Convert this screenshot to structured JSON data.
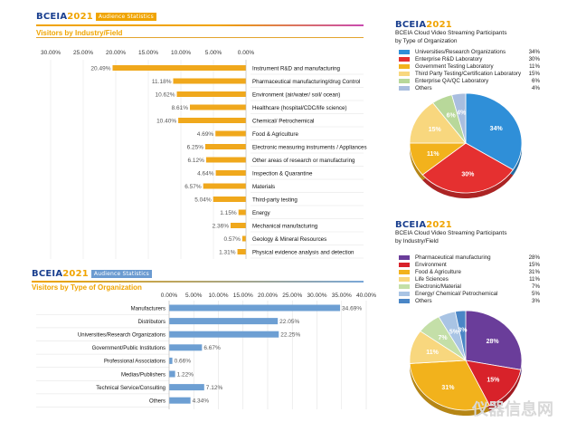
{
  "industry_section": {
    "logo_main": "BCEIA",
    "logo_year": "2021",
    "tag": "Audience Statistics",
    "title": "Visitors by Industry/Field"
  },
  "type_section": {
    "logo_main": "BCEIA",
    "logo_year": "2021",
    "tag": "Audience Statistics",
    "title": "Visitors by Type of Organization"
  },
  "pie_org_section": {
    "logo_main": "BCEIA",
    "logo_year": "2021",
    "title_line1": "BCEIA Cloud Video Streaming Participants",
    "title_line2": "by Type of Organization"
  },
  "pie_field_section": {
    "logo_main": "BCEIA",
    "logo_year": "2021",
    "title_line1": "BCEIA Cloud Video Streaming Participants",
    "title_line2": "by Industry/Field"
  },
  "watermark": "仪器信息网",
  "chart_data": [
    {
      "id": "industry",
      "type": "bar",
      "orientation": "horizontal-reversed",
      "title": "Visitors by Industry/Field",
      "xlim": [
        0,
        30
      ],
      "ticks": [
        "30.00%",
        "25.00%",
        "20.00%",
        "15.00%",
        "10.00%",
        "5.00%",
        "0.00%"
      ],
      "tick_values": [
        30,
        25,
        20,
        15,
        10,
        5,
        0
      ],
      "color": "#f0a81c",
      "categories": [
        "Instrument R&D and manufacturing",
        "Pharmaceutical manufacturing/drug Control",
        "Environment (air/water/ soil/ ocean)",
        "Healthcare (hospital/CDC/life science)",
        "Chemical/ Petrochemical",
        "Food & Agriculture",
        "Electronic measuring instruments / Appliances",
        "Other areas of research or manufacturing",
        "Inspection & Quarantine",
        "Materials",
        "Third-party testing",
        "Energy",
        "Mechanical manufacturing",
        "Geology & Mineral Resources",
        "Physical evidence analysis and detection"
      ],
      "values": [
        20.49,
        11.18,
        10.62,
        8.61,
        10.4,
        4.69,
        6.25,
        6.12,
        4.64,
        6.57,
        5.04,
        1.15,
        2.36,
        0.57,
        1.31
      ],
      "labels": [
        "20.49%",
        "11.18%",
        "10.62%",
        "8.61%",
        "10.40%",
        "4.69%",
        "6.25%",
        "6.12%",
        "4.64%",
        "6.57%",
        "5.04%",
        "1.15%",
        "2.36%",
        "0.57%",
        "1.31%"
      ]
    },
    {
      "id": "org_type",
      "type": "bar",
      "orientation": "horizontal",
      "title": "Visitors by Type of Organization",
      "xlim": [
        0,
        40
      ],
      "ticks": [
        "0.00%",
        "5.00%",
        "10.00%",
        "15.00%",
        "20.00%",
        "25.00%",
        "30.00%",
        "35.00%",
        "40.00%"
      ],
      "tick_values": [
        0,
        5,
        10,
        15,
        20,
        25,
        30,
        35,
        40
      ],
      "color": "#6d9fd3",
      "categories": [
        "Manufacturers",
        "Distributors",
        "Universities/Research Organizations",
        "Government/Public Institutions",
        "Professional Associations",
        "Medias/Publishers",
        "Technical Service/Consulting",
        "Others"
      ],
      "values": [
        34.69,
        22.05,
        22.25,
        6.67,
        0.66,
        1.22,
        7.12,
        4.34
      ],
      "labels": [
        "34.69%",
        "22.05%",
        "22.25%",
        "6.67%",
        "0.66%",
        "1.22%",
        "7.12%",
        "4.34%"
      ]
    },
    {
      "id": "pie_org",
      "type": "pie",
      "title": "BCEIA Cloud Video Streaming Participants by Type of Organization",
      "categories": [
        "Universities/Research Organizations",
        "Enterprise R&D Laboratory",
        "Government Testing Laboratory",
        "Third Party Testing/Certification Laboratory",
        "Enterprise QA/QC Laboratory",
        "Others"
      ],
      "values": [
        34,
        30,
        11,
        15,
        6,
        4
      ],
      "value_labels": [
        "34%",
        "30%",
        "11%",
        "15%",
        "6%",
        "4%"
      ],
      "colors": [
        "#2f8fd8",
        "#e53030",
        "#f2b21c",
        "#f8d77e",
        "#b8d89a",
        "#a9bedf"
      ],
      "slice_labels": [
        "34%",
        "30%",
        "11%",
        "15%",
        "6%",
        "4%"
      ]
    },
    {
      "id": "pie_field",
      "type": "pie",
      "title": "BCEIA Cloud Video Streaming Participants by Industry/Field",
      "categories": [
        "Pharmaceutical manufacturing",
        "Environment",
        "Food & Agriculture",
        "Life Sciences",
        "Electronic/Material",
        "Energy/ Chemical/ Petrochemical",
        "Others"
      ],
      "values": [
        28,
        15,
        31,
        11,
        7,
        5,
        3
      ],
      "value_labels": [
        "28%",
        "15%",
        "31%",
        "11%",
        "7%",
        "5%",
        "3%"
      ],
      "colors": [
        "#6a3d9a",
        "#d8222a",
        "#f2b21c",
        "#f8d77e",
        "#c4dfa8",
        "#a9c4e4",
        "#4a86c6"
      ],
      "slice_labels": [
        "28%",
        "15%",
        "31%",
        "11%",
        "7%",
        "5%",
        "3%"
      ]
    }
  ]
}
